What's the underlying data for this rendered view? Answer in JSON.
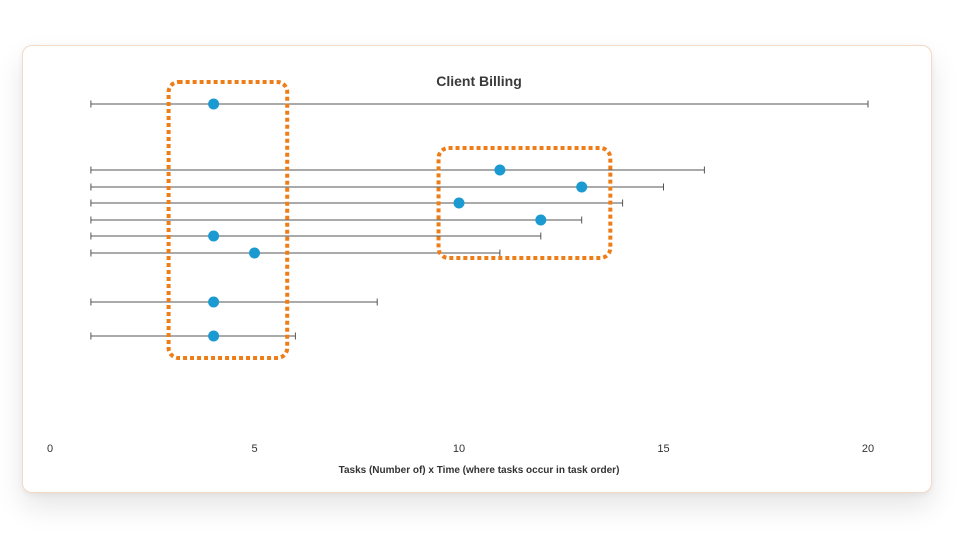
{
  "chart_data": {
    "type": "scatter",
    "title": "Client Billing",
    "xlabel": "Tasks (Number of) x Time (where tasks occur in task order)",
    "ylabel": "",
    "xlim": [
      0,
      20
    ],
    "x_ticks": [
      0,
      5,
      10,
      15,
      20
    ],
    "grid": false,
    "colors": {
      "point": "#1a9ad1",
      "highlight": "#ef7d17",
      "range": "#555555"
    },
    "rows": [
      {
        "start": 1,
        "end": 20,
        "point": 4
      },
      {
        "start": 1,
        "end": 16,
        "point": 11
      },
      {
        "start": 1,
        "end": 15,
        "point": 13
      },
      {
        "start": 1,
        "end": 14,
        "point": 10
      },
      {
        "start": 1,
        "end": 13,
        "point": 12
      },
      {
        "start": 1,
        "end": 12,
        "point": 4
      },
      {
        "start": 1,
        "end": 11,
        "point": 5
      },
      {
        "start": 1,
        "end": 8,
        "point": 4
      },
      {
        "start": 1,
        "end": 6,
        "point": 4
      }
    ],
    "highlights": [
      {
        "x_from": 2.9,
        "x_to": 5.8,
        "rows": [
          0,
          8
        ]
      },
      {
        "x_from": 9.5,
        "x_to": 13.7,
        "rows": [
          1,
          5
        ]
      }
    ]
  }
}
